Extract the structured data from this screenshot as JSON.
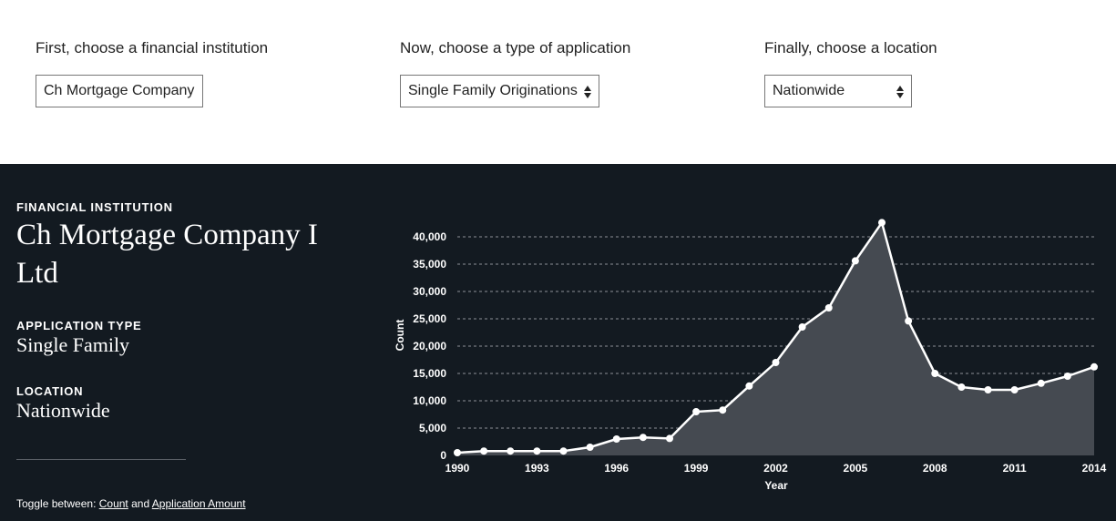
{
  "filters": {
    "institution": {
      "label": "First, choose a financial institution",
      "value": "Ch Mortgage Company"
    },
    "application": {
      "label": "Now, choose a type of application",
      "value": "Single Family Originations"
    },
    "location": {
      "label": "Finally, choose a location",
      "value": "Nationwide"
    }
  },
  "summary": {
    "institution_heading": "FINANCIAL INSTITUTION",
    "institution_name": "Ch Mortgage Company I Ltd",
    "application_heading": "APPLICATION TYPE",
    "application_value": "Single Family",
    "location_heading": "LOCATION",
    "location_value": "Nationwide"
  },
  "toggle": {
    "prefix": "Toggle between: ",
    "option1": "Count",
    "middle": " and ",
    "option2": "Application Amount"
  },
  "colors": {
    "panel_bg": "#131a21",
    "area_fill": "#454a51",
    "line": "#ffffff"
  },
  "chart_data": {
    "type": "area",
    "xlabel": "Year",
    "ylabel": "Count",
    "xlim": [
      1990,
      2014
    ],
    "ylim": [
      0,
      40000
    ],
    "xticks": [
      "1990",
      "1993",
      "1996",
      "1999",
      "2002",
      "2005",
      "2008",
      "2011",
      "2014"
    ],
    "yticks": [
      "0",
      "5,000",
      "10,000",
      "15,000",
      "20,000",
      "25,000",
      "30,000",
      "35,000",
      "40,000"
    ],
    "grid": true,
    "x": [
      1990,
      1991,
      1992,
      1993,
      1994,
      1995,
      1996,
      1997,
      1998,
      1999,
      2000,
      2001,
      2002,
      2003,
      2004,
      2005,
      2006,
      2007,
      2008,
      2009,
      2010,
      2011,
      2012,
      2013,
      2014
    ],
    "values": [
      500,
      800,
      800,
      800,
      800,
      1500,
      3000,
      3300,
      3100,
      8000,
      8300,
      12700,
      17000,
      23500,
      27000,
      35600,
      42600,
      24600,
      15000,
      12500,
      12000,
      12000,
      13200,
      14500,
      16200
    ]
  }
}
